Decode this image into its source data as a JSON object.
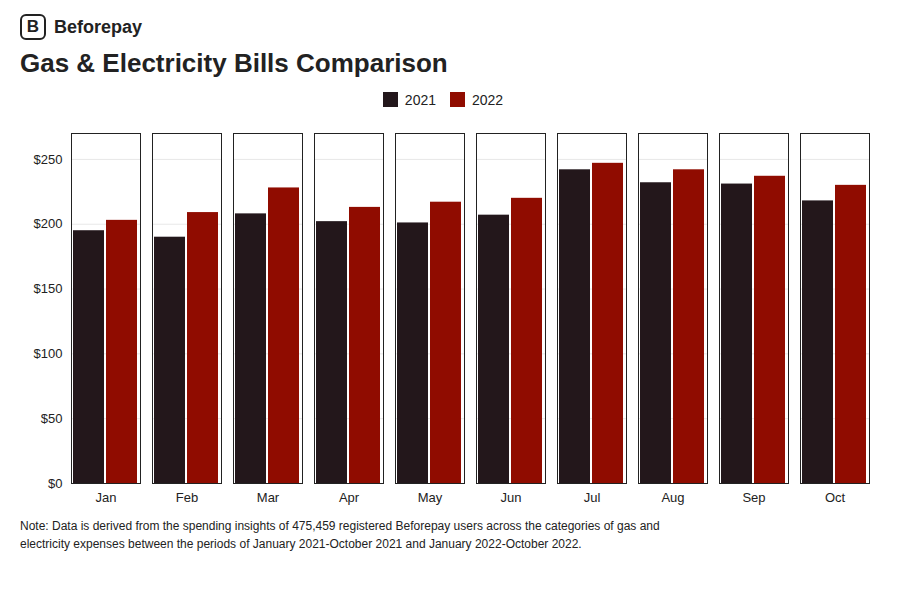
{
  "chart_data": {
    "type": "bar",
    "title": "Gas & Electricity Bills Comparison",
    "annotations": [
      "B",
      "Beforepay",
      "Note: Data is derived from the spending insights of 475,459 registered Beforepay users across the categories of gas and",
      "electricity expenses between the periods of January 2021-October 2021 and January 2022-October 2022."
    ],
    "categories": [
      "Jan",
      "Feb",
      "Mar",
      "Apr",
      "May",
      "Jun",
      "Jul",
      "Aug",
      "Sep",
      "Oct"
    ],
    "series": [
      {
        "name": "2021",
        "values": [
          195,
          190,
          208,
          202,
          201,
          207,
          242,
          232,
          231,
          218
        ]
      },
      {
        "name": "2022",
        "values": [
          203,
          209,
          228,
          213,
          217,
          220,
          247,
          242,
          237,
          230
        ]
      }
    ],
    "ylim": [
      0,
      270
    ],
    "yticks": [
      {
        "value": 0,
        "label": "$0"
      },
      {
        "value": 50,
        "label": "$50"
      },
      {
        "value": 100,
        "label": "$100"
      },
      {
        "value": 150,
        "label": "$150"
      },
      {
        "value": 200,
        "label": "$200"
      },
      {
        "value": 250,
        "label": "$250"
      }
    ],
    "grid": true,
    "legend": "top"
  }
}
